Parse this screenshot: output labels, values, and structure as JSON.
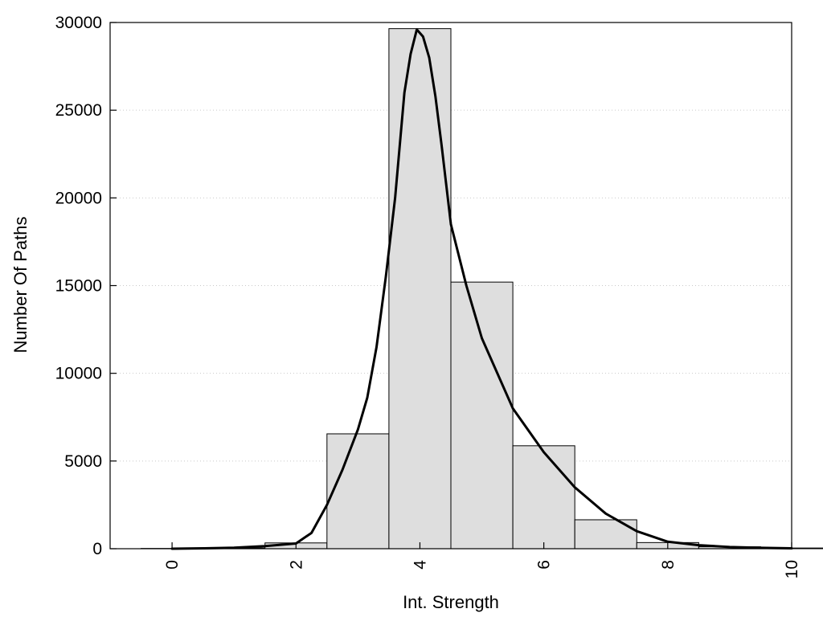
{
  "chart_data": {
    "type": "bar",
    "title": "",
    "xlabel": "Int. Strength",
    "ylabel": "Number Of Paths",
    "xlim": [
      -1,
      10
    ],
    "ylim": [
      0,
      30000
    ],
    "grid": "horizontal dotted",
    "legend": "none",
    "x_ticks": [
      "0",
      "2",
      "4",
      "6",
      "8",
      "10"
    ],
    "y_ticks": [
      "0",
      "5000",
      "10000",
      "15000",
      "20000",
      "25000",
      "30000"
    ],
    "bar_color": "#dedede",
    "bar_edge_color": "#000000",
    "curve_color": "#000000",
    "bin_width": 1,
    "categories": [
      0,
      1,
      2,
      3,
      4,
      5,
      6,
      7,
      8,
      9,
      10
    ],
    "values": [
      15,
      40,
      330,
      6550,
      29650,
      15200,
      5870,
      1650,
      350,
      110,
      40
    ],
    "series": [
      {
        "type": "line",
        "x": [
          0,
          0.5,
          1,
          1.5,
          2,
          2.25,
          2.5,
          2.75,
          3,
          3.15,
          3.3,
          3.45,
          3.6,
          3.75,
          3.85,
          3.95,
          4.05,
          4.15,
          4.25,
          4.35,
          4.5,
          4.75,
          5,
          5.5,
          6,
          6.5,
          7,
          7.5,
          8,
          8.5,
          9,
          9.5,
          10
        ],
        "y": [
          0,
          20,
          60,
          150,
          300,
          900,
          2500,
          4500,
          6800,
          8600,
          11500,
          15500,
          20000,
          26000,
          28200,
          29600,
          29200,
          28000,
          25800,
          23000,
          18500,
          15000,
          12000,
          8000,
          5500,
          3500,
          2000,
          1000,
          400,
          200,
          100,
          50,
          20
        ]
      }
    ]
  }
}
